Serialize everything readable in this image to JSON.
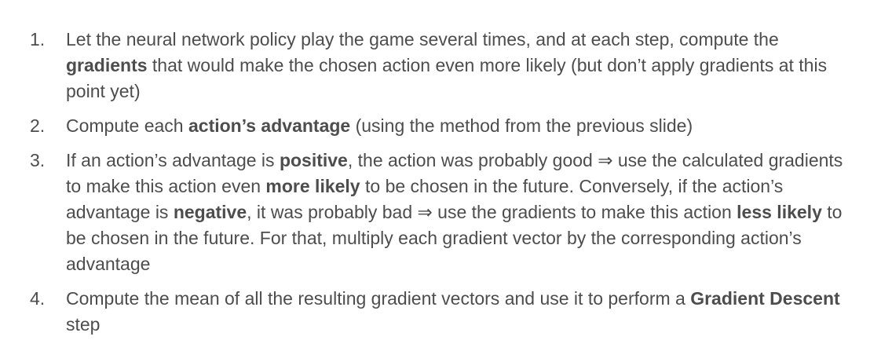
{
  "steps": [
    {
      "number": "1.",
      "parts": [
        {
          "text": "Let the neural network policy play the game several times, and at each step, compute the ",
          "bold": false
        },
        {
          "text": "gradients",
          "bold": true
        },
        {
          "text": " that would make the chosen action even more likely (but don’t apply gradients at this point yet)",
          "bold": false
        }
      ]
    },
    {
      "number": "2.",
      "parts": [
        {
          "text": "Compute each ",
          "bold": false
        },
        {
          "text": "action’s advantage",
          "bold": true
        },
        {
          "text": " (using the method from the previous slide)",
          "bold": false
        }
      ]
    },
    {
      "number": "3.",
      "parts": [
        {
          "text": "If an action’s advantage is ",
          "bold": false
        },
        {
          "text": "positive",
          "bold": true
        },
        {
          "text": ", the action was probably good ⇒ use the calculated gradients to make this action even ",
          "bold": false
        },
        {
          "text": "more likely",
          "bold": true
        },
        {
          "text": " to be chosen in the future. Conversely, if the action’s advantage is ",
          "bold": false
        },
        {
          "text": "negative",
          "bold": true
        },
        {
          "text": ", it was probably bad ⇒ use the gradients to make this action ",
          "bold": false
        },
        {
          "text": "less likely",
          "bold": true
        },
        {
          "text": " to be chosen in the future. For that, multiply each gradient vector by the corresponding action’s advantage",
          "bold": false
        }
      ]
    },
    {
      "number": "4.",
      "parts": [
        {
          "text": "Compute the mean of all the resulting gradient vectors and use it to perform a ",
          "bold": false
        },
        {
          "text": "Gradient Descent",
          "bold": true
        },
        {
          "text": " step",
          "bold": false
        }
      ]
    }
  ]
}
